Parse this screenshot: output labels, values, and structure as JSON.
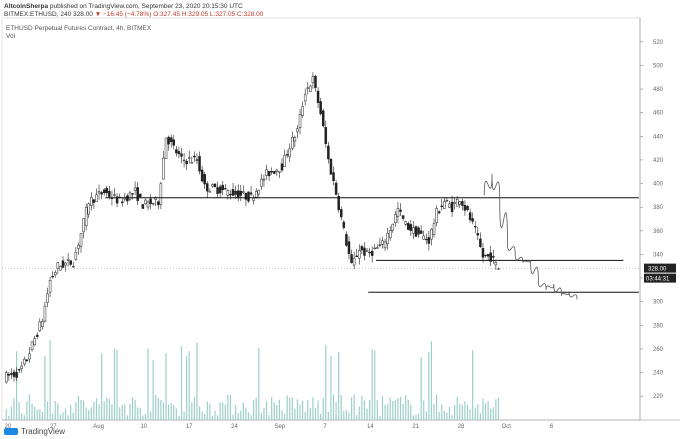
{
  "header": {
    "author": "AltcoinSherpa",
    "published": " published on TradingView.com, September 23, 2020 20:15:30 UTC",
    "symbol": "BITMEX:ETHUSD, 240",
    "price": "328.00",
    "change": "▼ −16.45 (−4.78%)",
    "ohlc": "O:327.45 H:329.05 L:327.05 C:328.00"
  },
  "chart_title": "ETHUSD Perpetual Futures Contract, 4h, BITMEX",
  "chart_sub": "Vol",
  "footer": {
    "brand": "TradingView"
  },
  "colors": {
    "candle": "#222222",
    "volume": "#9ccfc9",
    "level": "#111111",
    "projection": "#555555"
  },
  "chart_data": {
    "type": "candlestick",
    "y_axis": {
      "range": [
        210,
        530
      ],
      "ticks": [
        520,
        500,
        480,
        460,
        440,
        420,
        400,
        380,
        360,
        340,
        320,
        300,
        280,
        260,
        240,
        220
      ],
      "current_price_label": "328.00",
      "countdown_label": "03:44:31"
    },
    "x_axis": {
      "ticks": [
        "20",
        "27",
        "Aug",
        "10",
        "17",
        "24",
        "Sep",
        "7",
        "14",
        "21",
        "28",
        "Oct",
        "6"
      ]
    },
    "price_path": [
      [
        0,
        236
      ],
      [
        2,
        240
      ],
      [
        3,
        252
      ],
      [
        5,
        285
      ],
      [
        6,
        318
      ],
      [
        7,
        330
      ],
      [
        9,
        334
      ],
      [
        10,
        358
      ],
      [
        11,
        385
      ],
      [
        13,
        393
      ],
      [
        15,
        385
      ],
      [
        17,
        393
      ],
      [
        18,
        382
      ],
      [
        20,
        385
      ],
      [
        21,
        440
      ],
      [
        23,
        420
      ],
      [
        25,
        420
      ],
      [
        26,
        397
      ],
      [
        28,
        395
      ],
      [
        29,
        393
      ],
      [
        31,
        390
      ],
      [
        32,
        388
      ],
      [
        34,
        408
      ],
      [
        36,
        415
      ],
      [
        37,
        432
      ],
      [
        38,
        445
      ],
      [
        39,
        478
      ],
      [
        40,
        488
      ],
      [
        41,
        460
      ],
      [
        42,
        420
      ],
      [
        43,
        392
      ],
      [
        44,
        360
      ],
      [
        45,
        330
      ],
      [
        46,
        345
      ],
      [
        47,
        340
      ],
      [
        49,
        348
      ],
      [
        50,
        362
      ],
      [
        51,
        378
      ],
      [
        52,
        365
      ],
      [
        53,
        360
      ],
      [
        55,
        352
      ],
      [
        56,
        375
      ],
      [
        57,
        385
      ],
      [
        58,
        380
      ],
      [
        59,
        388
      ],
      [
        60,
        375
      ],
      [
        61,
        360
      ],
      [
        62,
        338
      ],
      [
        63,
        338
      ],
      [
        64,
        328
      ]
    ],
    "horizontal_levels": [
      {
        "price": 388,
        "from_x": 13,
        "to_x": 82
      },
      {
        "price": 335,
        "from_x": 48,
        "to_x": 80
      },
      {
        "price": 308,
        "from_x": 47,
        "to_x": 82
      }
    ],
    "projection_path": [
      [
        62,
        390
      ],
      [
        63,
        408
      ],
      [
        64,
        388
      ],
      [
        65,
        350
      ],
      [
        66,
        340
      ],
      [
        67,
        333
      ],
      [
        68,
        335
      ],
      [
        69,
        318
      ],
      [
        70,
        310
      ],
      [
        71,
        315
      ],
      [
        72,
        305
      ],
      [
        73,
        308
      ],
      [
        74,
        302
      ]
    ]
  }
}
